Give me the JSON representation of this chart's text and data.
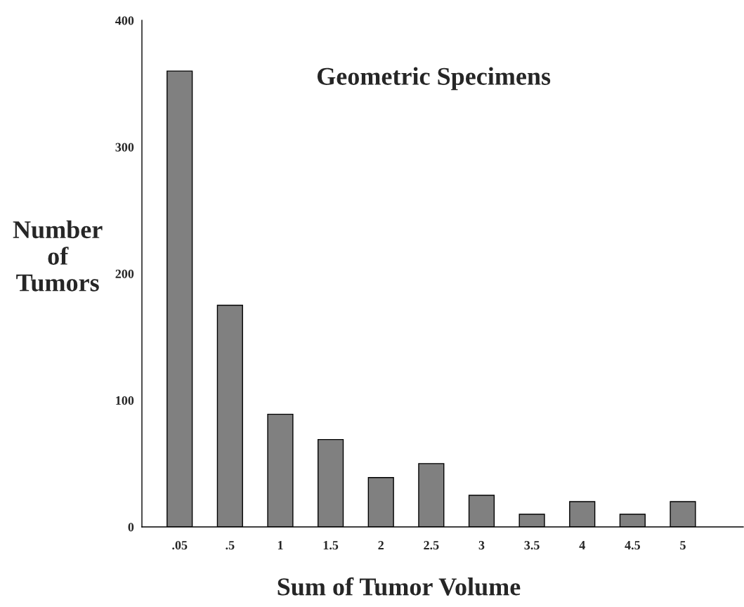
{
  "chart_data": {
    "type": "bar",
    "title": "Geometric Specimens",
    "xlabel": "Sum of Tumor Volume",
    "ylabel": "Number\nof\nTumors",
    "categories": [
      ".05",
      ".5",
      "1",
      "1.5",
      "2",
      "2.5",
      "3",
      "3.5",
      "4",
      "4.5",
      "5"
    ],
    "values": [
      360,
      175,
      89,
      69,
      39,
      50,
      25,
      10,
      20,
      10,
      20
    ],
    "color": "#808080",
    "ylim": [
      0,
      400
    ],
    "yticks": [
      0,
      100,
      200,
      300,
      400
    ],
    "grid": false,
    "legend": false
  }
}
